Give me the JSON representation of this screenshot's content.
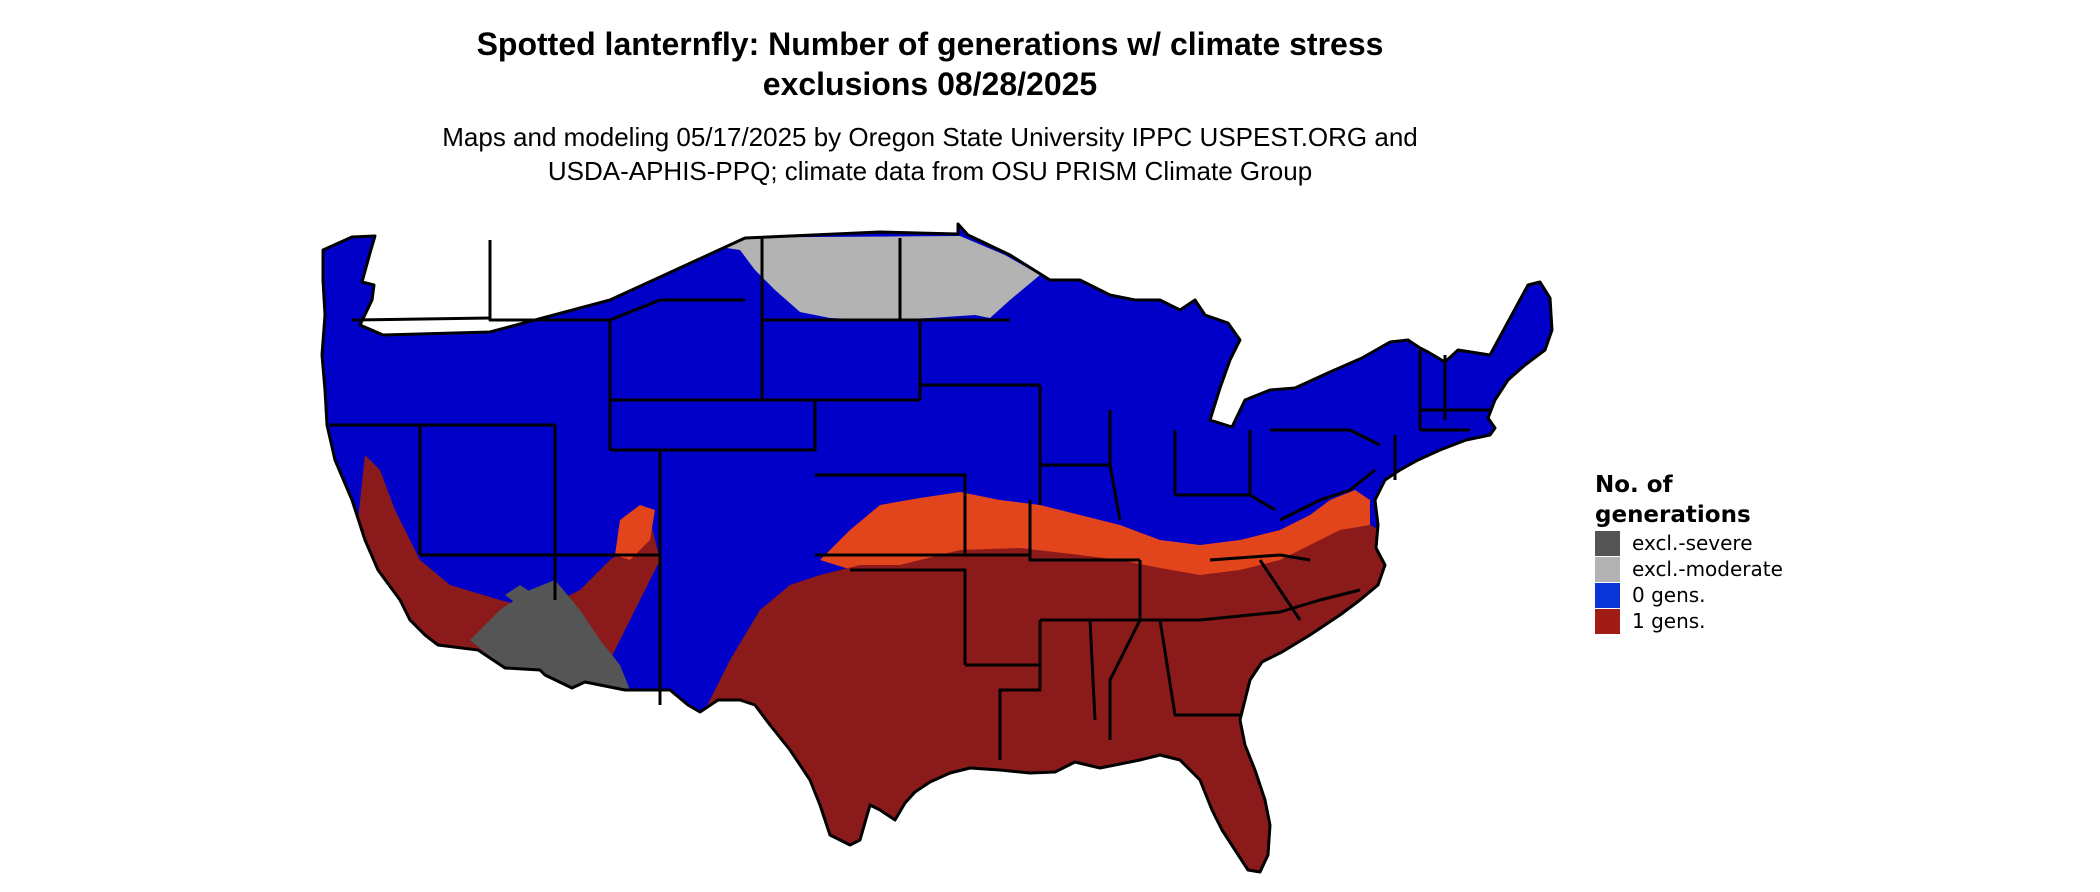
{
  "title": {
    "line1": "Spotted lanternfly: Number of generations w/ climate stress",
    "line2": "exclusions 08/28/2025"
  },
  "subtitle": {
    "line1": "Maps and modeling 05/17/2025 by Oregon State University IPPC USPEST.ORG and",
    "line2": "USDA-APHIS-PPQ; climate data from OSU PRISM Climate Group"
  },
  "legend": {
    "title_line1": "No. of",
    "title_line2": "generations",
    "items": [
      {
        "label": "excl.-severe",
        "color": "#555555"
      },
      {
        "label": "excl.-moderate",
        "color": "#b3b3b3"
      },
      {
        "label": "0 gens.",
        "color": "#0a35d9"
      },
      {
        "label": "1 gens.",
        "color": "#a01c14"
      }
    ]
  },
  "colors": {
    "severe": "#555555",
    "moderate": "#b3b3b3",
    "zero_gens": "#0000c8",
    "one_gen": "#8b1a1a",
    "transition": "#e2441c",
    "borders": "#000000"
  }
}
